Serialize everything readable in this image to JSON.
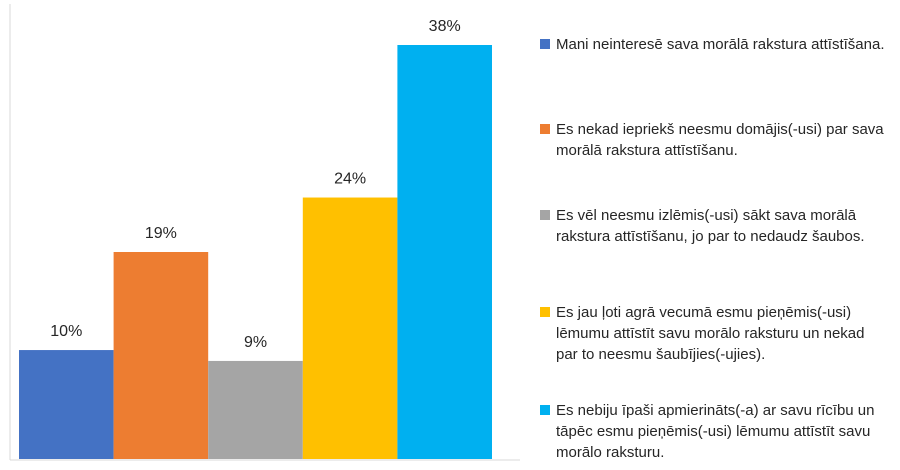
{
  "chart_data": {
    "type": "bar",
    "series": [
      {
        "name": "Mani neinteresē sava morālā rakstura attīstīšana.",
        "color": "#4472c4",
        "values": [
          10
        ],
        "value_labels": [
          "10%"
        ]
      },
      {
        "name": "Es nekad iepriekš neesmu domājis(-usi) par sava morālā rakstura attīstīšanu.",
        "color": "#ed7d31",
        "values": [
          19
        ],
        "value_labels": [
          "19%"
        ]
      },
      {
        "name": "Es vēl neesmu izlēmis(-usi) sākt sava morālā rakstura attīstīšanu, jo par to nedaudz šaubos.",
        "color": "#a5a5a5",
        "values": [
          9
        ],
        "value_labels": [
          "9%"
        ]
      },
      {
        "name": "Es jau ļoti agrā vecumā esmu pieņēmis(-usi) lēmumu attīstīt savu morālo raksturu un nekad par to neesmu šaubījies(-ujies).",
        "color": "#ffc000",
        "values": [
          24
        ],
        "value_labels": [
          "24%"
        ]
      },
      {
        "name": "Es nebiju īpaši apmierināts(-a) ar savu rīcību un tāpēc esmu pieņēmis(-usi) lēmumu attīstīt savu morālo raksturu.",
        "color": "#00b0f0",
        "values": [
          38
        ],
        "value_labels": [
          "38%"
        ]
      }
    ]
  }
}
